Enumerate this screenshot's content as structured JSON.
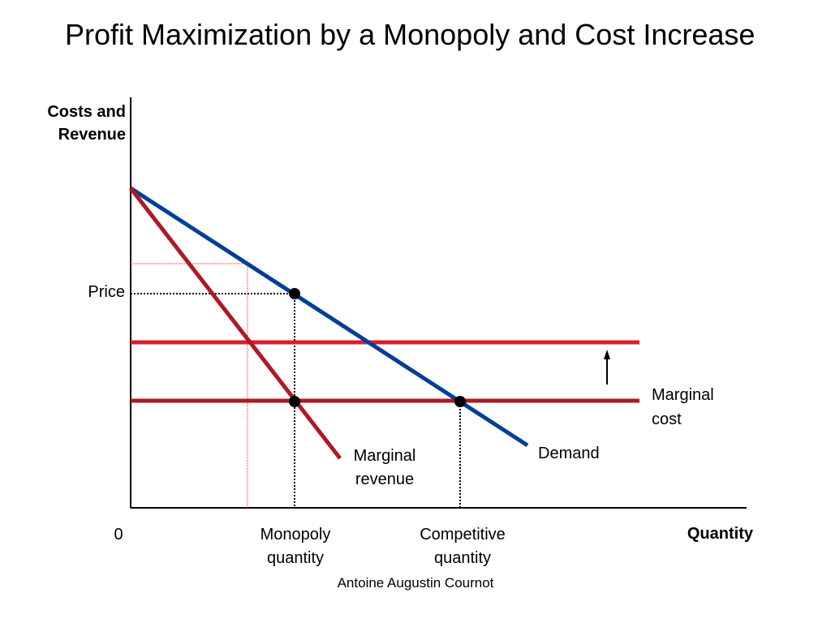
{
  "slide": {
    "title": "Profit Maximization by a Monopoly and Cost Increase",
    "footer": "Antoine Augustin Cournot"
  },
  "diagram": {
    "y_axis_label": [
      "Costs and",
      "Revenue"
    ],
    "x_axis_label": "Quantity",
    "origin_label": "0",
    "price_label": "Price",
    "demand_label": "Demand",
    "marginal_revenue_label": [
      "Marginal",
      "revenue"
    ],
    "marginal_cost_label": [
      "Marginal",
      "cost"
    ],
    "monopoly_quantity_label": [
      "Monopoly",
      "quantity"
    ],
    "competitive_quantity_label": [
      "Competitive",
      "quantity"
    ],
    "colors": {
      "demand": "#003f98",
      "marginal_revenue": "#b01824",
      "marginal_cost_old": "#b01824",
      "marginal_cost_new": "#d81e2c",
      "guides_new": "#e02020",
      "axis": "#000000"
    }
  }
}
